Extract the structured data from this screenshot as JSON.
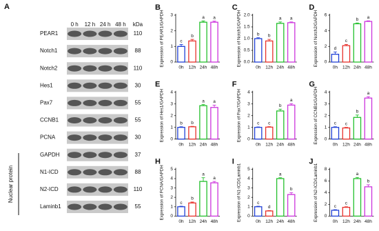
{
  "blot": {
    "label": "A",
    "times": [
      "0 h",
      "12 h",
      "24 h",
      "48 h"
    ],
    "kda_header": "kDa",
    "proteins": [
      {
        "name": "PEAR1",
        "kda": "110"
      },
      {
        "name": "Notch1",
        "kda": "88"
      },
      {
        "name": "Notch2",
        "kda": "110"
      },
      {
        "name": "Hes1",
        "kda": "30"
      },
      {
        "name": "Pax7",
        "kda": "55"
      },
      {
        "name": "CCNB1",
        "kda": "55"
      },
      {
        "name": "PCNA",
        "kda": "30"
      },
      {
        "name": "GAPDH",
        "kda": "37"
      },
      {
        "name": "N1-ICD",
        "kda": "88"
      },
      {
        "name": "N2-ICD",
        "kda": "110"
      },
      {
        "name": "Laminb1",
        "kda": "55"
      }
    ],
    "nuclear_label": "Nuclear protein"
  },
  "chart_data": [
    {
      "type": "bar",
      "panel": "B",
      "ylabel": "Expression of PEAR1/GAPDH",
      "categories": [
        "0h",
        "12h",
        "24h",
        "48h"
      ],
      "values": [
        1.0,
        1.35,
        2.55,
        2.55
      ],
      "errors": [
        0.12,
        0.1,
        0.08,
        0.07
      ],
      "letters": [
        "c",
        "b",
        "a",
        "a"
      ],
      "colors": [
        "#1f3fd6",
        "#e8302a",
        "#22c02b",
        "#cc33dd"
      ],
      "ylim": [
        0,
        3
      ],
      "yticks": [
        0,
        1,
        2,
        3
      ]
    },
    {
      "type": "bar",
      "panel": "C",
      "ylabel": "Expression of Notch1/GAPDH",
      "categories": [
        "0h",
        "12h",
        "24h",
        "48h"
      ],
      "values": [
        1.0,
        0.9,
        1.65,
        1.68
      ],
      "errors": [
        0.04,
        0.07,
        0.06,
        0.03
      ],
      "letters": [
        "b",
        "b",
        "a",
        "a"
      ],
      "colors": [
        "#1f3fd6",
        "#e8302a",
        "#22c02b",
        "#cc33dd"
      ],
      "ylim": [
        0,
        2
      ],
      "yticks": [
        {
          "value": 0,
          "label": "0.0"
        },
        {
          "value": 0.5,
          "label": "0.5"
        },
        {
          "value": 1,
          "label": "1.0"
        },
        {
          "value": 1.5,
          "label": "1.5"
        },
        {
          "value": 2,
          "label": "2.0"
        }
      ]
    },
    {
      "type": "bar",
      "panel": "D",
      "ylabel": "Expression of Notch2/GAPDH",
      "categories": [
        "0h",
        "12h",
        "24h",
        "48h"
      ],
      "values": [
        1.0,
        2.1,
        4.9,
        5.2
      ],
      "errors": [
        0.3,
        0.15,
        0.1,
        0.08
      ],
      "letters": [
        "d",
        "c",
        "b",
        "a"
      ],
      "colors": [
        "#1f3fd6",
        "#e8302a",
        "#22c02b",
        "#cc33dd"
      ],
      "ylim": [
        0,
        6
      ],
      "yticks": [
        0,
        2,
        4,
        6
      ]
    },
    {
      "type": "bar",
      "panel": "E",
      "ylabel": "Expression of Hes1/GAPDH",
      "categories": [
        "0h",
        "12h",
        "24h",
        "48h"
      ],
      "values": [
        1.0,
        1.05,
        2.85,
        2.7
      ],
      "errors": [
        0.05,
        0.04,
        0.1,
        0.2
      ],
      "letters": [
        "b",
        "b",
        "a",
        "a"
      ],
      "colors": [
        "#1f3fd6",
        "#e8302a",
        "#22c02b",
        "#cc33dd"
      ],
      "ylim": [
        0,
        4
      ],
      "yticks": [
        0,
        1,
        2,
        3,
        4
      ]
    },
    {
      "type": "bar",
      "panel": "F",
      "ylabel": "Expression of Pax7/GAPDH",
      "categories": [
        "0h",
        "12h",
        "24h",
        "48h"
      ],
      "values": [
        1.0,
        1.02,
        2.4,
        2.9
      ],
      "errors": [
        0.04,
        0.04,
        0.15,
        0.12
      ],
      "letters": [
        "c",
        "c",
        "b",
        "a"
      ],
      "colors": [
        "#1f3fd6",
        "#e8302a",
        "#22c02b",
        "#cc33dd"
      ],
      "ylim": [
        0,
        4
      ],
      "yticks": [
        0,
        1,
        2,
        3,
        4
      ]
    },
    {
      "type": "bar",
      "panel": "G",
      "ylabel": "Expression of CCNB1/GAPDH",
      "categories": [
        "0h",
        "12h",
        "24h",
        "48h"
      ],
      "values": [
        1.0,
        0.95,
        1.85,
        3.5
      ],
      "errors": [
        0.05,
        0.05,
        0.2,
        0.12
      ],
      "letters": [
        "c",
        "c",
        "b",
        "a"
      ],
      "colors": [
        "#1f3fd6",
        "#e8302a",
        "#22c02b",
        "#cc33dd"
      ],
      "ylim": [
        0,
        4
      ],
      "yticks": [
        0,
        1,
        2,
        3,
        4
      ]
    },
    {
      "type": "bar",
      "panel": "H",
      "ylabel": "Expression of PCNA/GAPDH",
      "categories": [
        "0h",
        "12h",
        "24h",
        "48h"
      ],
      "values": [
        1.0,
        1.4,
        3.7,
        3.55
      ],
      "errors": [
        0.05,
        0.1,
        0.4,
        0.15
      ],
      "letters": [
        "c",
        "b",
        "a",
        "a"
      ],
      "colors": [
        "#1f3fd6",
        "#e8302a",
        "#22c02b",
        "#cc33dd"
      ],
      "ylim": [
        0,
        5
      ],
      "yticks": [
        0,
        1,
        2,
        3,
        4,
        5
      ]
    },
    {
      "type": "bar",
      "panel": "I",
      "ylabel": "Expression of N1-ICD/Laminb1",
      "categories": [
        "0h",
        "12h",
        "24h",
        "48h"
      ],
      "values": [
        1.0,
        0.55,
        4.0,
        2.3
      ],
      "errors": [
        0.05,
        0.04,
        0.1,
        0.2
      ],
      "letters": [
        "c",
        "d",
        "a",
        "b"
      ],
      "colors": [
        "#1f3fd6",
        "#e8302a",
        "#22c02b",
        "#cc33dd"
      ],
      "ylim": [
        0,
        5
      ],
      "yticks": [
        0,
        1,
        2,
        3,
        4,
        5
      ]
    },
    {
      "type": "bar",
      "panel": "J",
      "ylabel": "Expression of N2-ICD/Laminb1",
      "categories": [
        "0h",
        "12h",
        "24h",
        "48h"
      ],
      "values": [
        1.0,
        1.5,
        6.4,
        5.0
      ],
      "errors": [
        0.1,
        0.1,
        0.2,
        0.35
      ],
      "letters": [
        "c",
        "c",
        "a",
        "b"
      ],
      "colors": [
        "#1f3fd6",
        "#e8302a",
        "#22c02b",
        "#cc33dd"
      ],
      "ylim": [
        0,
        8
      ],
      "yticks": [
        0,
        2,
        4,
        6,
        8
      ]
    }
  ]
}
